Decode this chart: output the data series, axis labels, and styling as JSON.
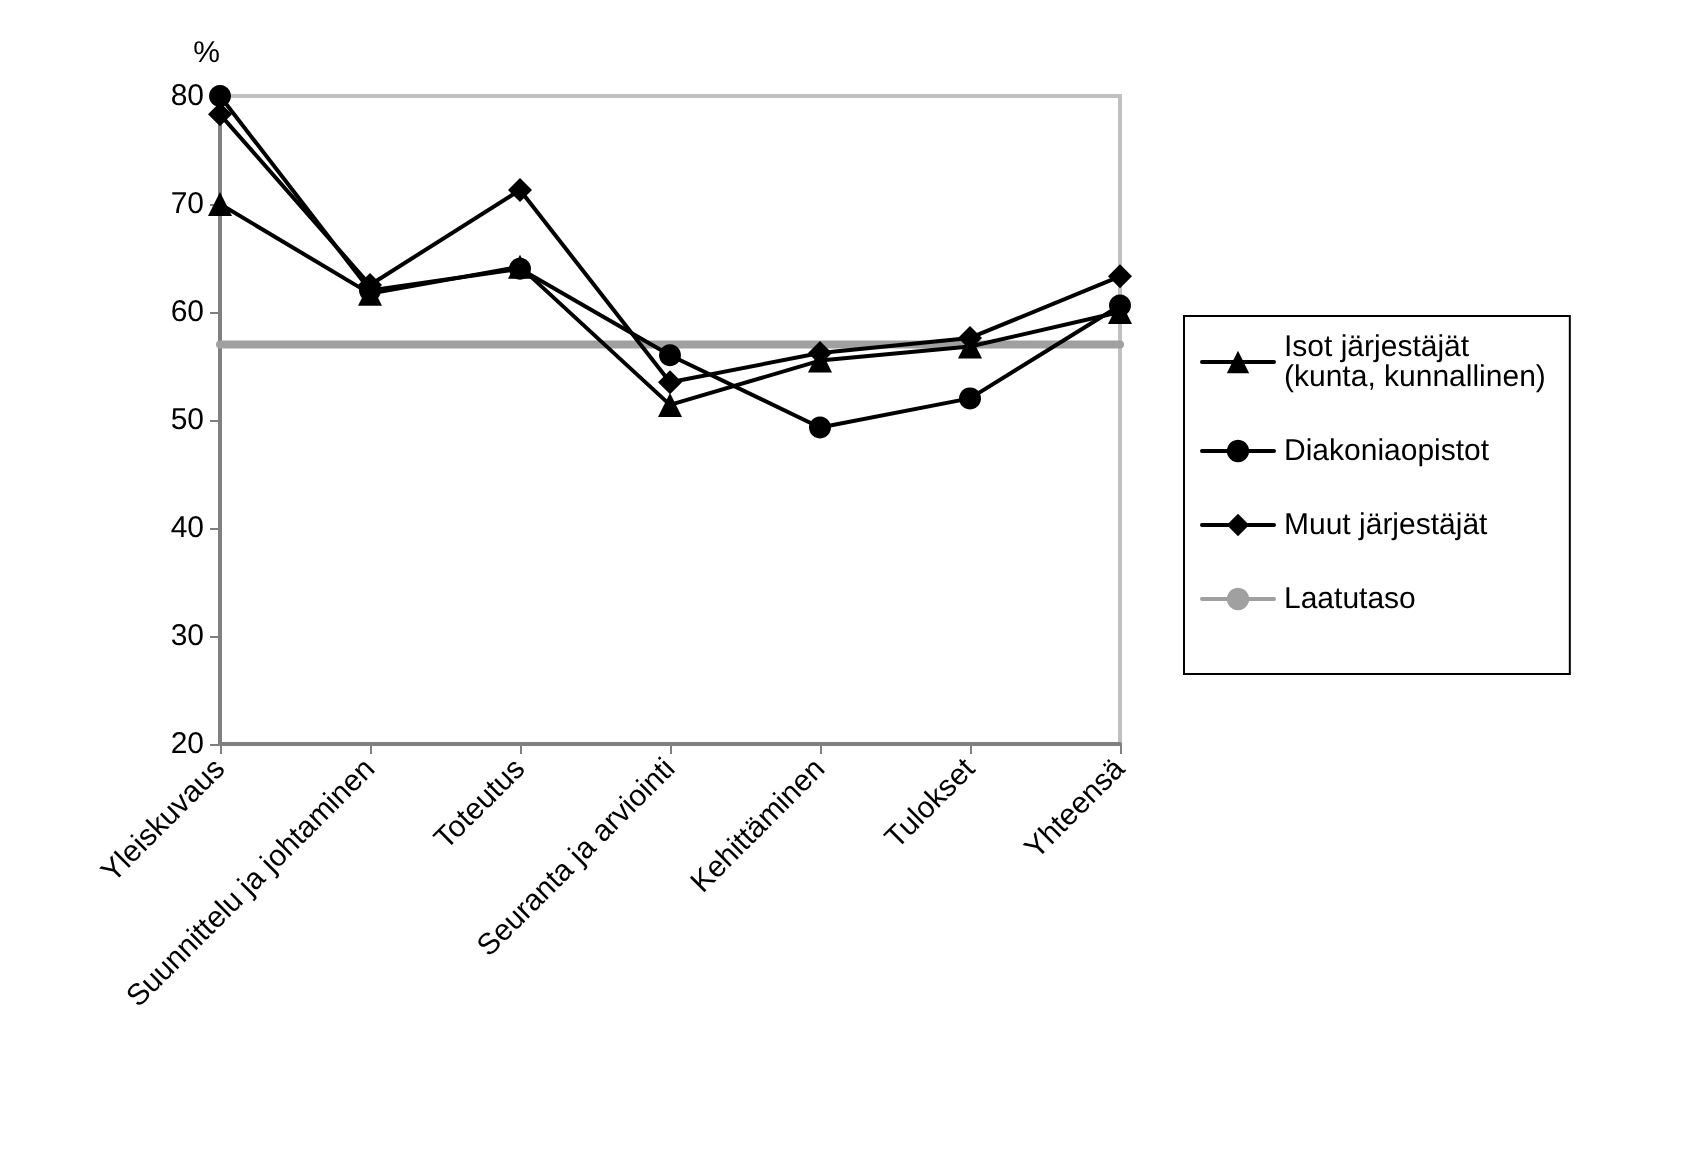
{
  "chart_data": {
    "type": "line",
    "ylabel": "%",
    "categories": [
      "Yleiskuvaus",
      "Suunnittelu ja johtaminen",
      "Toteutus",
      "Seuranta ja arviointi",
      "Kehittäminen",
      "Tulokset",
      "Yhteensä"
    ],
    "series": [
      {
        "name": "Isot järjestäjät\n(kunta, kunnallinen)",
        "color": "#000000",
        "marker": "triangle",
        "values": [
          70,
          61.7,
          64.2,
          51.4,
          55.5,
          56.8,
          60.0
        ]
      },
      {
        "name": "Diakoniaopistot",
        "color": "#000000",
        "marker": "circle",
        "values": [
          80,
          62,
          64,
          56,
          49.3,
          52,
          60.6
        ]
      },
      {
        "name": "Muut järjestäjät",
        "color": "#000000",
        "marker": "diamond",
        "values": [
          78.3,
          62.5,
          71.3,
          53.5,
          56.2,
          57.6,
          63.3
        ]
      },
      {
        "name": "Laatutaso",
        "color": "#a0a0a0",
        "marker": "none",
        "values": [
          57,
          57,
          57,
          57,
          57,
          57,
          57
        ]
      }
    ],
    "ylim": [
      20,
      80
    ],
    "yticks": [
      20,
      30,
      40,
      50,
      60,
      70,
      80
    ],
    "grid": false,
    "legend": "right"
  }
}
